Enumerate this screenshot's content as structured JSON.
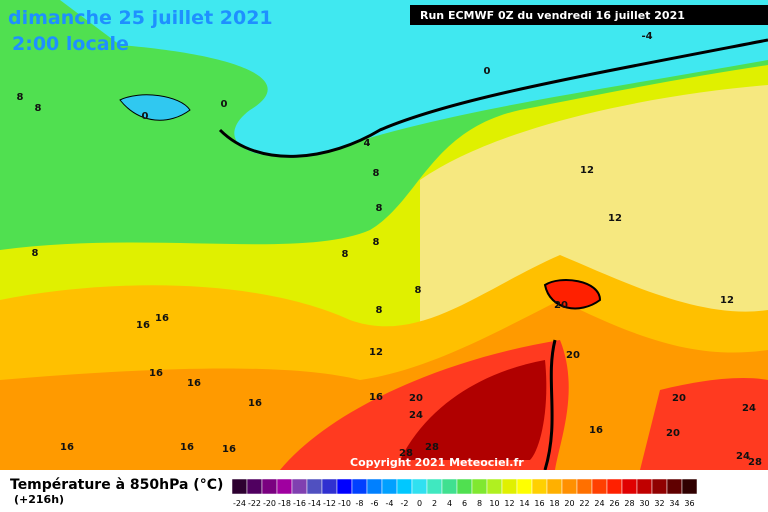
{
  "header": {
    "title": "dimanche 25 juillet 2021",
    "subtitle": "2:00 locale",
    "run": "Run ECMWF 0Z du vendredi 16 juillet 2021"
  },
  "map": {
    "contour_labels": [
      "8",
      "8",
      "0",
      "0",
      "0",
      "-4",
      "4",
      "8",
      "8",
      "8",
      "8",
      "8",
      "12",
      "12",
      "8",
      "8",
      "16",
      "16",
      "12",
      "20",
      "20",
      "16",
      "16",
      "16",
      "16",
      "20",
      "24",
      "16",
      "16",
      "16",
      "28",
      "28",
      "12",
      "20",
      "20",
      "16",
      "24",
      "24",
      "28"
    ],
    "copyright": "Copyright 2021 Meteociel.fr"
  },
  "legend": {
    "title": "Température à 850hPa (°C)",
    "subtitle": "(+216h)",
    "labels": [
      "-24",
      "-22",
      "-20",
      "-18",
      "-16",
      "-14",
      "-12",
      "-10",
      "-8",
      "-6",
      "-4",
      "-2",
      "0",
      "2",
      "4",
      "6",
      "8",
      "10",
      "12",
      "14",
      "16",
      "18",
      "20",
      "22",
      "24",
      "26",
      "28",
      "30",
      "32",
      "34",
      "36"
    ],
    "colors": [
      "#2d0030",
      "#500060",
      "#7a0080",
      "#a000a0",
      "#8040b0",
      "#5050c0",
      "#3030d0",
      "#0000ff",
      "#0040ff",
      "#0080ff",
      "#00a0ff",
      "#00c8ff",
      "#30e0f0",
      "#40e8c0",
      "#40e090",
      "#50e050",
      "#80e830",
      "#b0f020",
      "#e0f000",
      "#ffff00",
      "#ffd000",
      "#ffb000",
      "#ff9000",
      "#ff7000",
      "#ff4000",
      "#ff2000",
      "#e00000",
      "#c00000",
      "#900000",
      "#600000",
      "#300000"
    ]
  }
}
